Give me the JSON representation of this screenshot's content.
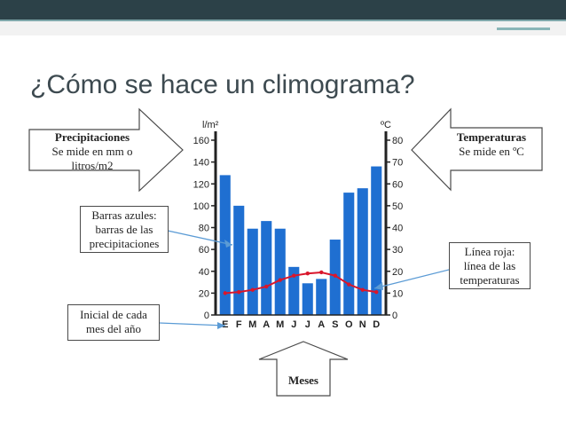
{
  "slide": {
    "title": "¿Cómo se hace un climograma?",
    "callouts": {
      "precip_title": "Precipitaciones",
      "precip_line1": "Se mide en mm o",
      "precip_line2": "litros/m2",
      "temp_title": "Temperaturas",
      "temp_line1": "Se mide en ºC",
      "bars_line1": "Barras azules:",
      "bars_line2": "barras de las",
      "bars_line3": "precipitaciones",
      "redline_line1": "Línea roja:",
      "redline_line2": "línea de las",
      "redline_line3": "temperaturas",
      "initial_line1": "Inicial de cada",
      "initial_line2": "mes del año",
      "months_label": "Meses"
    },
    "colors": {
      "bar": "#1f6fd1",
      "line": "#d9162b",
      "axis": "#222222",
      "header": "#2c4148"
    }
  },
  "chart_data": {
    "type": "bar",
    "categories": [
      "E",
      "F",
      "M",
      "A",
      "M",
      "J",
      "J",
      "A",
      "S",
      "O",
      "N",
      "D"
    ],
    "series": [
      {
        "values": [
          128,
          100,
          79,
          86,
          79,
          44,
          29,
          33,
          69,
          112,
          116,
          136
        ],
        "axis": "left"
      },
      {
        "values": [
          10,
          10.5,
          11.5,
          13,
          16,
          18,
          19,
          19.5,
          18,
          14,
          11.5,
          10.5
        ],
        "axis": "right",
        "type": "line"
      }
    ],
    "left_axis": {
      "unit": "l/m²",
      "ticks": [
        "0",
        "20",
        "40",
        "60",
        "80",
        "100",
        "120",
        "140",
        "160"
      ],
      "ylim": [
        0,
        160
      ]
    },
    "right_axis": {
      "unit": "ºC",
      "ticks": [
        "0",
        "10",
        "20",
        "30",
        "40",
        "50",
        "60",
        "70",
        "80"
      ],
      "ylim": [
        0,
        80
      ]
    }
  }
}
